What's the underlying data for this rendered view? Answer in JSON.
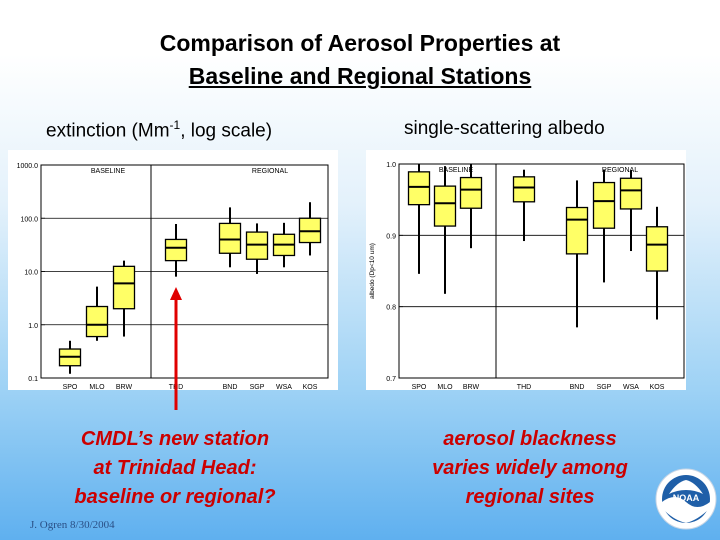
{
  "title_line1": "Comparison of Aerosol Properties at",
  "title_line2": "Baseline and Regional Stations",
  "panel1_title_a": "extinction (Mm",
  "panel1_title_sup": "-1",
  "panel1_title_b": ", log scale)",
  "panel2_title": "single-scattering albedo",
  "caption_left": [
    "CMDL’s new station",
    "at Trinidad Head:",
    "baseline or regional?"
  ],
  "caption_right": [
    "aerosol blackness",
    "varies widely among",
    "regional sites"
  ],
  "footer": "J. Ogren  8/30/2004",
  "logo_text": "NOAA",
  "colors": {
    "box_fill": "#ffff66",
    "arrow": "#e00000",
    "caption": "#cc0000"
  },
  "chart_data": [
    {
      "type": "boxplot",
      "xlabel": "",
      "ylabel": "",
      "yscale": "log",
      "ylim": [
        0.1,
        1000
      ],
      "yticks": [
        "1000.0",
        "100.0",
        "10.0",
        "1.0",
        "0.1"
      ],
      "group_labels": [
        "BASELINE",
        "REGIONAL"
      ],
      "categories": [
        "SPO",
        "MLO",
        "BRW",
        "THD",
        "BND",
        "SGP",
        "WSA",
        "KOS"
      ],
      "boxes": [
        {
          "name": "SPO",
          "whisker_low": 0.12,
          "q1": 0.17,
          "median": 0.25,
          "q3": 0.35,
          "whisker_high": 0.5
        },
        {
          "name": "MLO",
          "whisker_low": 0.5,
          "q1": 0.6,
          "median": 1.0,
          "q3": 2.2,
          "whisker_high": 5.2
        },
        {
          "name": "BRW",
          "whisker_low": 0.6,
          "q1": 2.0,
          "median": 6.0,
          "q3": 12.5,
          "whisker_high": 16
        },
        {
          "name": "THD",
          "whisker_low": 8,
          "q1": 16,
          "median": 28,
          "q3": 40,
          "whisker_high": 78
        },
        {
          "name": "BND",
          "whisker_low": 12,
          "q1": 22,
          "median": 40,
          "q3": 80,
          "whisker_high": 160
        },
        {
          "name": "SGP",
          "whisker_low": 9,
          "q1": 17,
          "median": 32,
          "q3": 55,
          "whisker_high": 80
        },
        {
          "name": "WSA",
          "whisker_low": 12,
          "q1": 20,
          "median": 32,
          "q3": 50,
          "whisker_high": 82
        },
        {
          "name": "KOS",
          "whisker_low": 20,
          "q1": 35,
          "median": 57,
          "q3": 100,
          "whisker_high": 200
        }
      ]
    },
    {
      "type": "boxplot",
      "xlabel": "",
      "ylabel": "albedo (Dp<10 um)",
      "ylim": [
        0.7,
        1.0
      ],
      "yticks": [
        "1.0",
        "0.9",
        "0.8",
        "0.7"
      ],
      "group_labels": [
        "BASELINE",
        "REGIONAL"
      ],
      "categories": [
        "SPO",
        "MLO",
        "BRW",
        "THD",
        "BND",
        "SGP",
        "WSA",
        "KOS"
      ],
      "boxes": [
        {
          "name": "SPO",
          "whisker_low": 0.846,
          "q1": 0.943,
          "median": 0.968,
          "q3": 0.989,
          "whisker_high": 1.0
        },
        {
          "name": "MLO",
          "whisker_low": 0.818,
          "q1": 0.913,
          "median": 0.945,
          "q3": 0.969,
          "whisker_high": 0.997
        },
        {
          "name": "BRW",
          "whisker_low": 0.882,
          "q1": 0.938,
          "median": 0.964,
          "q3": 0.981,
          "whisker_high": 1.0
        },
        {
          "name": "THD",
          "whisker_low": 0.892,
          "q1": 0.947,
          "median": 0.967,
          "q3": 0.982,
          "whisker_high": 0.992
        },
        {
          "name": "BND",
          "whisker_low": 0.771,
          "q1": 0.874,
          "median": 0.922,
          "q3": 0.939,
          "whisker_high": 0.977
        },
        {
          "name": "SGP",
          "whisker_low": 0.834,
          "q1": 0.91,
          "median": 0.948,
          "q3": 0.974,
          "whisker_high": 0.992
        },
        {
          "name": "WSA",
          "whisker_low": 0.878,
          "q1": 0.937,
          "median": 0.963,
          "q3": 0.98,
          "whisker_high": 0.991
        },
        {
          "name": "KOS",
          "whisker_low": 0.782,
          "q1": 0.85,
          "median": 0.887,
          "q3": 0.912,
          "whisker_high": 0.94
        }
      ]
    }
  ]
}
